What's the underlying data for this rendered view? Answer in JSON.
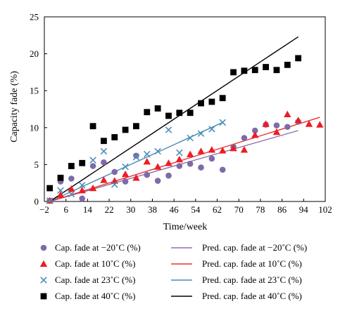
{
  "chart_data": {
    "type": "scatter",
    "xlabel": "Time/week",
    "ylabel": "Capacity fade (%)",
    "xlim": [
      -2,
      102
    ],
    "ylim": [
      0,
      25
    ],
    "x_ticks": [
      "−2",
      "6",
      "14",
      "22",
      "30",
      "38",
      "46",
      "54",
      "62",
      "70",
      "78",
      "86",
      "94",
      "102"
    ],
    "y_ticks": [
      "0",
      "5",
      "10",
      "15",
      "20",
      "25"
    ],
    "grid": false,
    "legend_position": "bottom",
    "series": [
      {
        "name": "Cap. fade at −20˚C (%)",
        "marker": "circle",
        "color": "#7f6aa8",
        "points": [
          [
            0,
            0.1
          ],
          [
            4,
            2.7
          ],
          [
            8,
            3.1
          ],
          [
            12,
            0.4
          ],
          [
            16,
            4.8
          ],
          [
            20,
            5.3
          ],
          [
            24,
            4.0
          ],
          [
            28,
            2.7
          ],
          [
            32,
            6.2
          ],
          [
            36,
            3.6
          ],
          [
            40,
            2.8
          ],
          [
            44,
            3.5
          ],
          [
            48,
            4.8
          ],
          [
            52,
            5.1
          ],
          [
            56,
            4.6
          ],
          [
            60,
            5.8
          ],
          [
            64,
            4.3
          ],
          [
            68,
            7.4
          ],
          [
            72,
            8.6
          ],
          [
            76,
            9.6
          ],
          [
            80,
            10.4
          ],
          [
            84,
            10.3
          ],
          [
            88,
            10.1
          ],
          [
            92,
            10.8
          ]
        ]
      },
      {
        "name": "Cap. fade at 10˚C (%)",
        "marker": "triangle",
        "color": "#ee1c24",
        "points": [
          [
            0,
            0.1
          ],
          [
            4,
            0.9
          ],
          [
            8,
            1.7
          ],
          [
            12,
            1.5
          ],
          [
            16,
            1.8
          ],
          [
            20,
            2.9
          ],
          [
            24,
            2.8
          ],
          [
            28,
            3.7
          ],
          [
            32,
            3.2
          ],
          [
            36,
            5.4
          ],
          [
            40,
            4.7
          ],
          [
            44,
            5.2
          ],
          [
            48,
            5.7
          ],
          [
            52,
            6.4
          ],
          [
            56,
            6.8
          ],
          [
            60,
            7.0
          ],
          [
            64,
            6.9
          ],
          [
            68,
            7.2
          ],
          [
            72,
            7.0
          ],
          [
            76,
            9.0
          ],
          [
            80,
            10.5
          ],
          [
            84,
            9.4
          ],
          [
            88,
            11.8
          ],
          [
            92,
            11.0
          ],
          [
            96,
            10.5
          ],
          [
            100,
            10.4
          ]
        ]
      },
      {
        "name": "Cap. fade at 23˚C (%)",
        "marker": "x",
        "color": "#4a90b8",
        "points": [
          [
            0,
            0.1
          ],
          [
            4,
            1.5
          ],
          [
            8,
            1.0
          ],
          [
            12,
            2.2
          ],
          [
            16,
            5.6
          ],
          [
            20,
            6.8
          ],
          [
            24,
            2.3
          ],
          [
            28,
            4.7
          ],
          [
            32,
            6.0
          ],
          [
            36,
            6.4
          ],
          [
            40,
            6.8
          ],
          [
            44,
            9.7
          ],
          [
            48,
            6.6
          ],
          [
            52,
            8.6
          ],
          [
            56,
            9.2
          ],
          [
            60,
            9.8
          ],
          [
            64,
            10.7
          ]
        ]
      },
      {
        "name": "Cap. fade at 40˚C (%)",
        "marker": "square",
        "color": "#000000",
        "points": [
          [
            0,
            1.8
          ],
          [
            4,
            3.2
          ],
          [
            8,
            4.8
          ],
          [
            12,
            5.2
          ],
          [
            16,
            10.2
          ],
          [
            20,
            8.2
          ],
          [
            24,
            8.7
          ],
          [
            28,
            9.7
          ],
          [
            32,
            10.2
          ],
          [
            36,
            12.1
          ],
          [
            40,
            12.6
          ],
          [
            44,
            11.6
          ],
          [
            48,
            12.0
          ],
          [
            52,
            12.0
          ],
          [
            56,
            13.3
          ],
          [
            60,
            13.5
          ],
          [
            64,
            14.0
          ],
          [
            68,
            17.5
          ],
          [
            72,
            17.7
          ],
          [
            76,
            17.8
          ],
          [
            80,
            18.2
          ],
          [
            84,
            17.8
          ],
          [
            88,
            18.5
          ],
          [
            92,
            19.4
          ]
        ]
      },
      {
        "name": "Pred. cap. fade at −20˚C (%)",
        "marker": "line",
        "color": "#8e6fae",
        "points": [
          [
            0,
            0
          ],
          [
            92,
            9.6
          ]
        ]
      },
      {
        "name": "Pred. cap. fade at 10˚C (%)",
        "marker": "line",
        "color": "#e53333",
        "points": [
          [
            0,
            0
          ],
          [
            100,
            11.4
          ]
        ]
      },
      {
        "name": "Pred. cap. fade at 23˚C (%)",
        "marker": "line",
        "color": "#4b8ab2",
        "points": [
          [
            0,
            0
          ],
          [
            64,
            10.7
          ]
        ]
      },
      {
        "name": "Pred. cap. fade at 40˚C (%)",
        "marker": "line",
        "color": "#000000",
        "points": [
          [
            0,
            0
          ],
          [
            92,
            22.3
          ]
        ]
      }
    ]
  }
}
